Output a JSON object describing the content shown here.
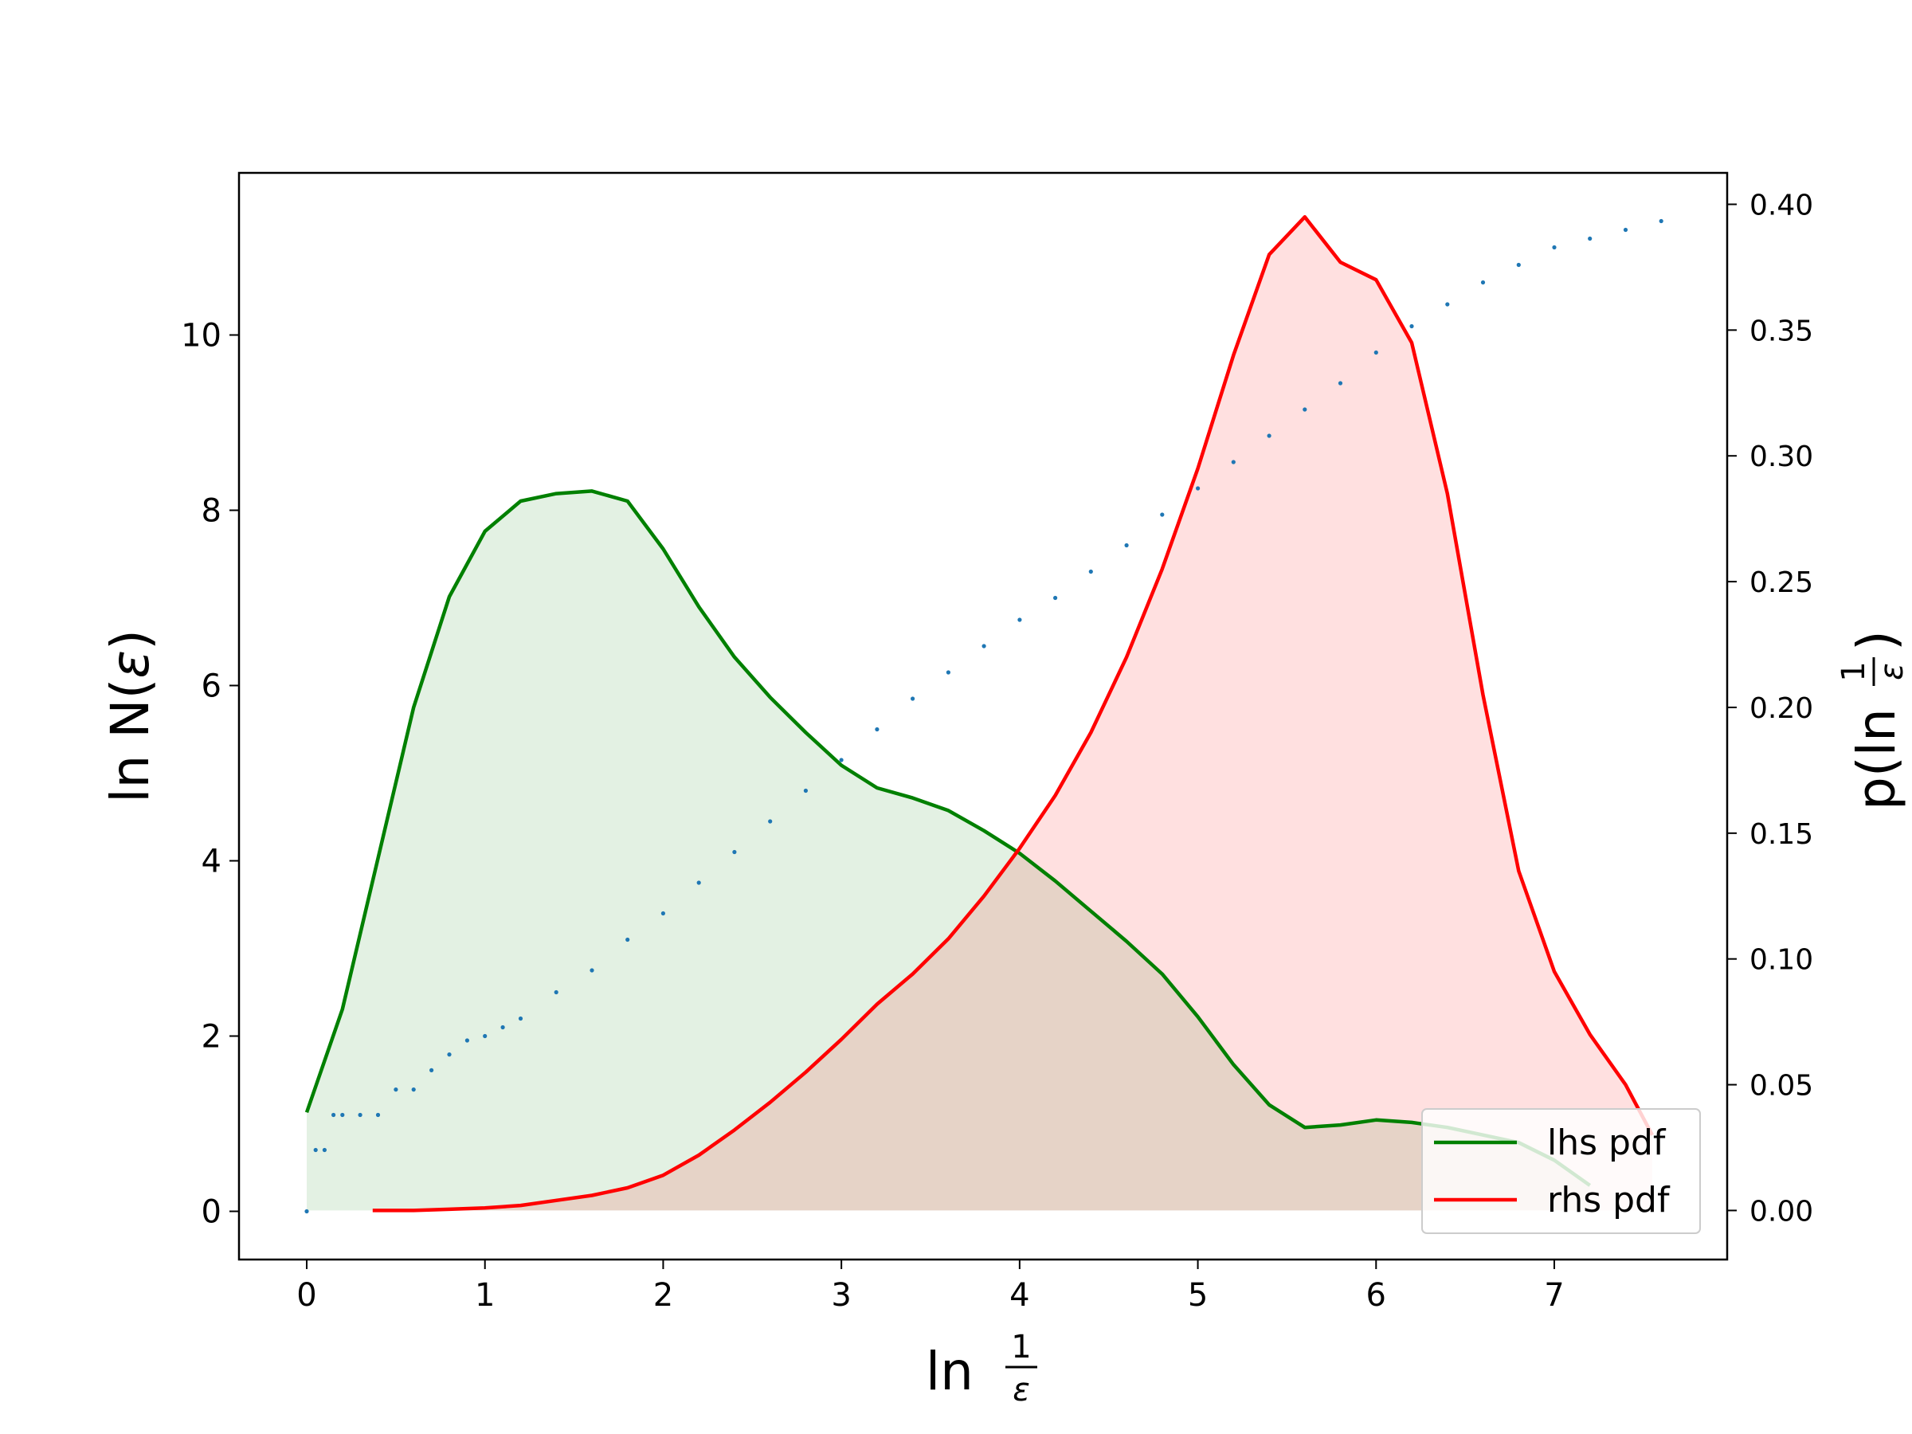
{
  "chart_data": {
    "type": "line",
    "title": "",
    "xlabel": {
      "prefix": "ln",
      "numerator": "1",
      "denominator": "ε"
    },
    "ylabel_left": {
      "text": "ln N(",
      "symbol": "ε",
      "suffix": ")"
    },
    "ylabel_right": {
      "prefix": "p(ln",
      "numerator": "1",
      "denominator": "ε",
      "suffix": ")"
    },
    "xlim": [
      -0.38,
      7.97
    ],
    "ylim_left": [
      -0.55,
      11.85
    ],
    "ylim_right": [
      -0.0195,
      0.4125
    ],
    "x_ticks": [
      "0",
      "1",
      "2",
      "3",
      "4",
      "5",
      "6",
      "7"
    ],
    "y_left_ticks": [
      "0",
      "2",
      "4",
      "6",
      "8",
      "10"
    ],
    "y_right_ticks": [
      "0.00",
      "0.05",
      "0.10",
      "0.15",
      "0.20",
      "0.25",
      "0.30",
      "0.35",
      "0.40"
    ],
    "legend": {
      "position": "lower-right",
      "entries": [
        "lhs pdf",
        "rhs pdf"
      ]
    },
    "grid": false,
    "series": [
      {
        "name": "",
        "axis": "left",
        "style": "dotted-markers",
        "color": "#1f77b4",
        "x": [
          0,
          0.05,
          0.1,
          0.15,
          0.2,
          0.3,
          0.4,
          0.5,
          0.6,
          0.7,
          0.8,
          0.9,
          1.0,
          1.1,
          1.2,
          1.4,
          1.6,
          1.8,
          2.0,
          2.2,
          2.4,
          2.6,
          2.8,
          3.0,
          3.2,
          3.4,
          3.6,
          3.8,
          4.0,
          4.2,
          4.4,
          4.6,
          4.8,
          5.0,
          5.2,
          5.4,
          5.6,
          5.8,
          6.0,
          6.2,
          6.4,
          6.6,
          6.8,
          7.0,
          7.2,
          7.4,
          7.6
        ],
        "y": [
          0.0,
          0.7,
          0.7,
          1.1,
          1.1,
          1.1,
          1.1,
          1.39,
          1.39,
          1.61,
          1.79,
          1.95,
          2.0,
          2.1,
          2.2,
          2.5,
          2.75,
          3.1,
          3.4,
          3.75,
          4.1,
          4.45,
          4.8,
          5.15,
          5.5,
          5.85,
          6.15,
          6.45,
          6.75,
          7.0,
          7.3,
          7.6,
          7.95,
          8.25,
          8.55,
          8.85,
          9.15,
          9.45,
          9.8,
          10.1,
          10.35,
          10.6,
          10.8,
          11.0,
          11.1,
          11.2,
          11.3
        ]
      },
      {
        "name": "lhs pdf",
        "axis": "right",
        "style": "line-filled",
        "color": "#008000",
        "fill": "rgba(0,128,0,0.11)",
        "x": [
          0,
          0.2,
          0.4,
          0.6,
          0.8,
          1.0,
          1.2,
          1.4,
          1.6,
          1.8,
          2.0,
          2.2,
          2.4,
          2.6,
          2.8,
          3.0,
          3.2,
          3.4,
          3.6,
          3.8,
          4.0,
          4.2,
          4.4,
          4.6,
          4.8,
          5.0,
          5.2,
          5.4,
          5.6,
          5.8,
          6.0,
          6.2,
          6.4,
          6.6,
          6.8,
          7.0,
          7.2
        ],
        "y": [
          0.039,
          0.08,
          0.14,
          0.2,
          0.244,
          0.27,
          0.282,
          0.285,
          0.286,
          0.282,
          0.263,
          0.24,
          0.22,
          0.204,
          0.19,
          0.177,
          0.168,
          0.164,
          0.159,
          0.151,
          0.142,
          0.131,
          0.119,
          0.107,
          0.094,
          0.077,
          0.058,
          0.042,
          0.033,
          0.034,
          0.036,
          0.035,
          0.033,
          0.03,
          0.027,
          0.02,
          0.01
        ]
      },
      {
        "name": "rhs pdf",
        "axis": "right",
        "style": "line-filled",
        "color": "#ff0000",
        "fill": "rgba(255,0,0,0.12)",
        "x": [
          0.37,
          0.6,
          0.8,
          1.0,
          1.2,
          1.4,
          1.6,
          1.8,
          2.0,
          2.2,
          2.4,
          2.6,
          2.8,
          3.0,
          3.2,
          3.4,
          3.6,
          3.8,
          4.0,
          4.2,
          4.4,
          4.6,
          4.8,
          5.0,
          5.2,
          5.4,
          5.6,
          5.8,
          6.0,
          6.2,
          6.4,
          6.6,
          6.8,
          7.0,
          7.2,
          7.4,
          7.55
        ],
        "y": [
          0.0,
          0.0,
          0.0005,
          0.001,
          0.002,
          0.004,
          0.006,
          0.009,
          0.014,
          0.022,
          0.032,
          0.043,
          0.055,
          0.068,
          0.082,
          0.094,
          0.108,
          0.125,
          0.144,
          0.165,
          0.19,
          0.22,
          0.255,
          0.295,
          0.34,
          0.38,
          0.395,
          0.377,
          0.37,
          0.345,
          0.285,
          0.205,
          0.135,
          0.095,
          0.07,
          0.05,
          0.03
        ]
      }
    ]
  }
}
